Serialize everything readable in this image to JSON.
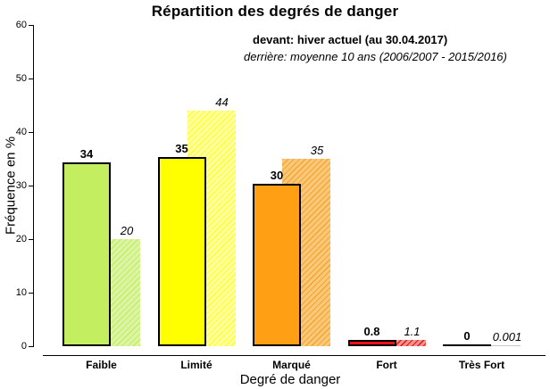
{
  "chart": {
    "title": "Répartition des degrés de danger"
  },
  "chart_data": {
    "type": "bar",
    "title": "Répartition des degrés de danger",
    "categories": [
      "Faible",
      "Limité",
      "Marqué",
      "Fort",
      "Très Fort"
    ],
    "series": [
      {
        "name": "devant: hiver actuel (au 30.04.2017)",
        "position": "front",
        "values": [
          34,
          35,
          30,
          0.8,
          0
        ],
        "labels": [
          "34",
          "35",
          "30",
          "0.8",
          "0"
        ],
        "colors": [
          "#c2ee5f",
          "#ffff00",
          "#ffa014",
          "#e8111c",
          "#000000"
        ]
      },
      {
        "name": "derrière: moyenne 10 ans (2006/2007 - 2015/2016)",
        "position": "back",
        "values": [
          20,
          44,
          35,
          1.1,
          0.001
        ],
        "labels": [
          "20",
          "44",
          "35",
          "1.1",
          "0.001"
        ],
        "colors": [
          "#dcf4a6",
          "#ffffa0",
          "#f9c878",
          "#f2948b",
          "#c8c8c8"
        ],
        "hatch_colors": [
          "#c2ee5f",
          "#ffff2e",
          "#f7a433",
          "#e8111c",
          "#c8c8c8"
        ]
      }
    ],
    "xlabel": "Degré de danger",
    "ylabel": "Fréquence en %",
    "ylim": [
      0,
      60
    ],
    "yticks": [
      0,
      10,
      20,
      30,
      40,
      50,
      60
    ],
    "grid": false,
    "legend_position": "top-right",
    "background_color": "#ffffff",
    "outline_color": "#000000"
  }
}
